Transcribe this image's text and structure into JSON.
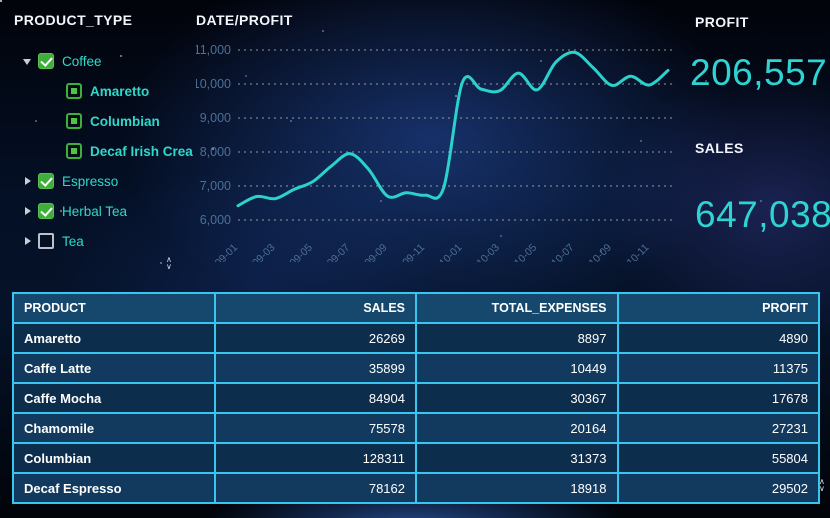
{
  "colors": {
    "accent_teal": "#2fd9c9",
    "kpi_cyan": "#2ed4d4",
    "line_color": "#2bd2cc",
    "grid_dot": "#b5b9b0",
    "axis_label": "#4c7096",
    "table_border": "#38c6f1",
    "table_header_bg": "#16486d",
    "row_dark": "#0d2d4c",
    "row_light": "#123a5e",
    "checkbox_green": "#3fae3b"
  },
  "tree": {
    "title": "PRODUCT_TYPE",
    "items": [
      {
        "label": "Coffee",
        "level": 0,
        "arrow": "down",
        "checkbox": "checked"
      },
      {
        "label": "Amaretto",
        "level": 1,
        "arrow": "none",
        "checkbox": "leaf-selected"
      },
      {
        "label": "Columbian",
        "level": 1,
        "arrow": "none",
        "checkbox": "leaf-selected"
      },
      {
        "label": "Decaf Irish Crea",
        "level": 1,
        "arrow": "none",
        "checkbox": "leaf-selected"
      },
      {
        "label": "Espresso",
        "level": 0,
        "arrow": "right",
        "checkbox": "checked"
      },
      {
        "label": "Herbal Tea",
        "level": 0,
        "arrow": "right",
        "checkbox": "checked"
      },
      {
        "label": "Tea",
        "level": 0,
        "arrow": "right",
        "checkbox": "unchecked"
      }
    ]
  },
  "chart": {
    "title": "DATE/PROFIT"
  },
  "chart_data": {
    "type": "line",
    "title": "DATE/PROFIT",
    "x": [
      "2009-01",
      "2009-02",
      "2009-03",
      "2009-04",
      "2009-05",
      "2009-06",
      "2009-07",
      "2009-08",
      "2009-09",
      "2009-10",
      "2009-11",
      "2009-12",
      "2010-01",
      "2010-02",
      "2010-03",
      "2010-04",
      "2010-05",
      "2010-06",
      "2010-07",
      "2010-08",
      "2010-09",
      "2010-10",
      "2010-11",
      "2010-12"
    ],
    "values": [
      6420,
      6690,
      6630,
      6900,
      7130,
      7590,
      7950,
      7480,
      6700,
      6800,
      6730,
      6950,
      10040,
      9850,
      9800,
      10320,
      9830,
      10640,
      10930,
      10480,
      9960,
      10230,
      9970,
      10400
    ],
    "x_tick_labels": [
      "2009-01",
      "2009-03",
      "2009-05",
      "2009-07",
      "2009-09",
      "2009-11",
      "2010-01",
      "2010-03",
      "2010-05",
      "2010-07",
      "2010-09",
      "2010-11"
    ],
    "y_ticks": [
      6000,
      7000,
      8000,
      9000,
      10000,
      11000
    ],
    "y_tick_labels": [
      "6,000",
      "7,000",
      "8,000",
      "9,000",
      "10,000",
      "11,000"
    ],
    "ylim": [
      6000,
      11000
    ],
    "grid": "horizontal-dotted",
    "legend": "none"
  },
  "kpis": {
    "profit_label": "PROFIT",
    "profit_value": "206,557",
    "sales_label": "SALES",
    "sales_value": "647,038"
  },
  "table": {
    "columns": [
      {
        "label": "PRODUCT",
        "align": "txt"
      },
      {
        "label": "SALES",
        "align": "num"
      },
      {
        "label": "TOTAL_EXPENSES",
        "align": "num"
      },
      {
        "label": "PROFIT",
        "align": "num"
      }
    ],
    "rows": [
      [
        "Amaretto",
        "26269",
        "8897",
        "4890"
      ],
      [
        "Caffe Latte",
        "35899",
        "10449",
        "11375"
      ],
      [
        "Caffe Mocha",
        "84904",
        "30367",
        "17678"
      ],
      [
        "Chamomile",
        "75578",
        "20164",
        "27231"
      ],
      [
        "Columbian",
        "128311",
        "31373",
        "55804"
      ],
      [
        "Decaf Espresso",
        "78162",
        "18918",
        "29502"
      ]
    ]
  },
  "scroll_hint": {
    "up": "∧",
    "down": "∨"
  }
}
